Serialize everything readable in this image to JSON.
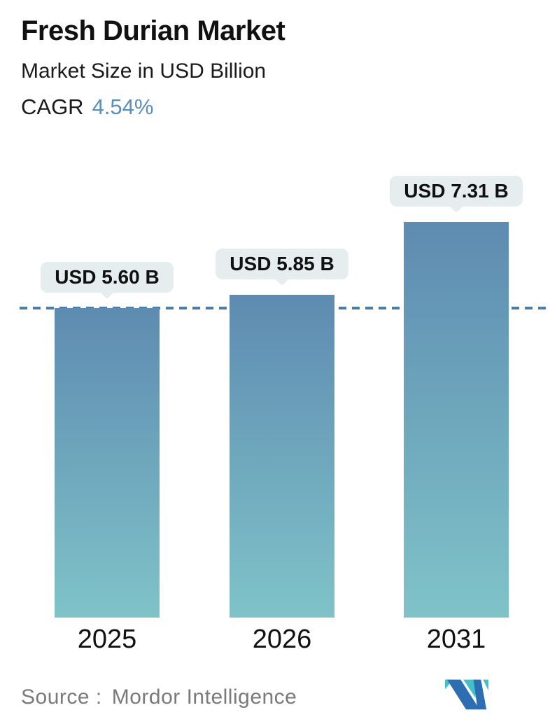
{
  "page": {
    "background": "#ffffff"
  },
  "header": {
    "title": "Fresh Durian Market",
    "subtitle": "Market Size in USD Billion",
    "cagr_label": "CAGR",
    "cagr_value": "4.54%",
    "cagr_value_color": "#5a8ebc"
  },
  "chart_data": {
    "type": "bar",
    "categories": [
      "2025",
      "2026",
      "2031"
    ],
    "values": [
      5.6,
      5.85,
      7.31
    ],
    "value_labels": [
      "USD 5.60 B",
      "USD 5.85 B",
      "USD 7.31 B"
    ],
    "title": "Fresh Durian Market",
    "subtitle": "Market Size in USD Billion",
    "cagr": "4.54%",
    "xlabel": "",
    "ylabel": "",
    "ylim": [
      0,
      8
    ],
    "grid": false,
    "legend": false,
    "annotations": [
      {
        "type": "hline",
        "value": 5.6,
        "style": "dashed",
        "color": "#4b7da8"
      }
    ],
    "colors": {
      "bar_gradient_top": "#5e8bb1",
      "bar_gradient_bottom": "#7fc3c8",
      "label_pill_bg": "#e5edee",
      "label_text": "#111111",
      "axis_label_text": "#111111"
    }
  },
  "footer": {
    "source_label": "Source :",
    "source_value": "Mordor Intelligence",
    "logo": {
      "name": "mordor-intelligence-logo",
      "blue": "#2d6db2",
      "teal": "#42c0c9"
    }
  }
}
